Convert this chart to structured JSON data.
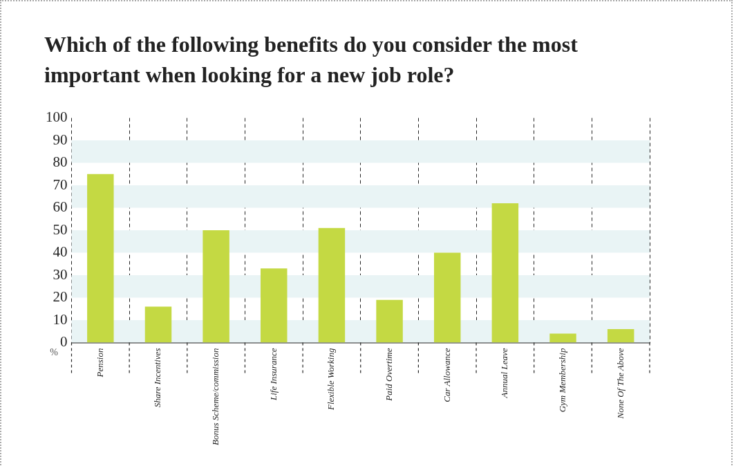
{
  "chart_data": {
    "type": "bar",
    "title": "Which of the following benefits do you consider the most important when looking for a new job role?",
    "ylabel": "%",
    "categories": [
      "Pension",
      "Share Incentives",
      "Bonus Scheme/commission",
      "Life Insurance",
      "Flexible Working",
      "Paid Overtime",
      "Car Allowance",
      "Annual Leave",
      "Gym Membership",
      "None Of The Above"
    ],
    "values": [
      75,
      16,
      50,
      33,
      51,
      19,
      40,
      62,
      4,
      6
    ],
    "color": "#c4d943",
    "ylim": [
      0,
      100
    ],
    "yticks": [
      0,
      10,
      20,
      30,
      40,
      50,
      60,
      70,
      80,
      90,
      100
    ],
    "grid": "x",
    "bands": [
      {
        "axis": "y",
        "from": 0,
        "to": 10,
        "color": "#e9f4f5"
      },
      {
        "axis": "y",
        "from": 20,
        "to": 30,
        "color": "#e9f4f5"
      },
      {
        "axis": "y",
        "from": 40,
        "to": 50,
        "color": "#e9f4f5"
      },
      {
        "axis": "y",
        "from": 60,
        "to": 70,
        "color": "#e9f4f5"
      },
      {
        "axis": "y",
        "from": 80,
        "to": 90,
        "color": "#e9f4f5"
      }
    ]
  }
}
